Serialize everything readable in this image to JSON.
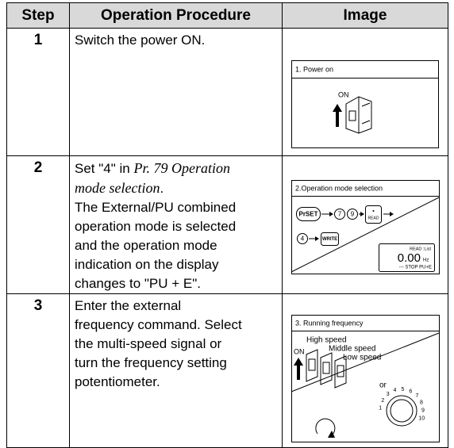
{
  "table": {
    "headers": [
      "Step",
      "Operation Procedure",
      "Image"
    ],
    "rows": [
      {
        "step": "1",
        "procedure": [
          "Switch the power ON."
        ],
        "image": {
          "title": "1. Power on",
          "label": "ON"
        }
      },
      {
        "step": "2",
        "procedure": [
          [
            "Set \"4\" in ",
            "Pr. 79 Operation"
          ],
          [
            "mode selection",
            "."
          ],
          "The External/PU combined",
          "operation mode is selected",
          "and the operation mode",
          "indication on the display",
          "changes to \"PU + E\"."
        ],
        "image": {
          "title": "2.Operation mode selection",
          "keys": [
            "PrSET",
            "7",
            "9",
            "READ",
            "4",
            "WRITE"
          ],
          "display": {
            "top": "READ :List",
            "value": "0.00",
            "unit": "Hz",
            "bottom": "--- STOP PU+E"
          }
        }
      },
      {
        "step": "3",
        "procedure": [
          "Enter the external",
          "frequency command. Select",
          "the multi-speed signal or",
          "turn the frequency setting",
          "potentiometer."
        ],
        "image": {
          "title": "3. Running frequency",
          "speeds": [
            "High speed",
            "Middle speed",
            "Low speed"
          ],
          "switch": "ON",
          "or": "or",
          "dial": [
            "1",
            "2",
            "3",
            "4",
            "5",
            "6",
            "7",
            "8",
            "9",
            "10"
          ]
        }
      }
    ]
  }
}
